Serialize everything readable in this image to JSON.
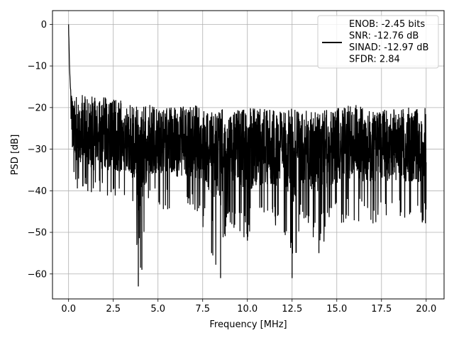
{
  "chart_data": {
    "type": "line",
    "title": "",
    "xlabel": "Frequency [MHz]",
    "ylabel": "PSD [dB]",
    "xlim": [
      -0.9,
      21.0
    ],
    "ylim": [
      -66,
      3.3
    ],
    "grid": true,
    "legend_position": "top-right",
    "x_ticks": [
      0.0,
      2.5,
      5.0,
      7.5,
      10.0,
      12.5,
      15.0,
      17.5,
      20.0
    ],
    "x_tick_labels": [
      "0.0",
      "2.5",
      "5.0",
      "7.5",
      "10.0",
      "12.5",
      "15.0",
      "17.5",
      "20.0"
    ],
    "y_ticks": [
      0,
      -10,
      -20,
      -30,
      -40,
      -50,
      -60
    ],
    "y_tick_labels": [
      "0",
      "−10",
      "−20",
      "−30",
      "−40",
      "−50",
      "−60"
    ],
    "legend": [
      "ENOB: -2.45 bits",
      "SNR: -12.76 dB",
      "SINAD: -12.97 dB",
      "SFDR: 2.84"
    ],
    "series": [
      {
        "color": "#000000",
        "x": [
          0.0,
          0.05,
          0.1,
          0.15,
          0.2,
          0.3,
          0.4,
          0.5,
          0.6,
          0.8,
          1.0,
          1.3,
          1.6,
          2.0,
          2.5,
          3.0,
          3.5,
          3.9,
          4.1,
          4.5,
          5.0,
          6.0,
          7.0,
          8.0,
          8.5,
          9.0,
          10.0,
          11.0,
          12.0,
          12.5,
          13.0,
          14.0,
          15.0,
          16.0,
          17.0,
          18.0,
          19.0,
          20.0
        ],
        "y": [
          0.0,
          -8.0,
          -12.0,
          -22.0,
          -25.0,
          -27.0,
          -28.0,
          -27.0,
          -29.0,
          -27.0,
          -28.0,
          -29.0,
          -28.0,
          -29.0,
          -28.0,
          -29.0,
          -30.0,
          -31.0,
          -30.0,
          -29.0,
          -30.0,
          -29.0,
          -30.0,
          -29.0,
          -30.0,
          -29.0,
          -30.0,
          -29.0,
          -30.0,
          -31.0,
          -30.0,
          -29.0,
          -30.0,
          -29.0,
          -30.0,
          -29.0,
          -30.0,
          -31.0
        ],
        "upper_envelope": [
          0.0,
          -10.0,
          -15.0,
          -17.0,
          -16.0,
          -17.0,
          -15.0,
          -15.0,
          -17.0,
          -16.0,
          -17.0,
          -17.0,
          -18.0,
          -17.0,
          -18.0,
          -18.0,
          -19.0,
          -20.0,
          -19.0,
          -19.0,
          -20.0,
          -20.0,
          -19.0,
          -21.0,
          -20.0,
          -21.0,
          -20.0,
          -20.0,
          -21.0,
          -20.0,
          -20.0,
          -21.0,
          -20.0,
          -19.0,
          -21.0,
          -20.0,
          -20.0,
          -20.0
        ],
        "lower_envelope": [
          -2.0,
          -12.0,
          -25.0,
          -31.0,
          -35.0,
          -37.0,
          -38.0,
          -40.0,
          -39.0,
          -40.0,
          -42.0,
          -45.0,
          -40.0,
          -44.0,
          -45.0,
          -44.0,
          -43.0,
          -63.0,
          -59.0,
          -45.0,
          -44.0,
          -46.0,
          -45.0,
          -55.0,
          -61.0,
          -48.0,
          -52.0,
          -50.0,
          -50.0,
          -61.0,
          -48.0,
          -55.0,
          -48.0,
          -48.0,
          -48.0,
          -48.0,
          -48.0,
          -48.0
        ]
      }
    ]
  }
}
